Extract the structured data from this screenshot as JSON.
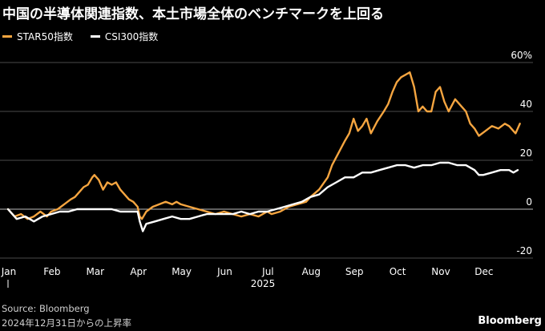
{
  "title": "中国の半導体関連指数、本土市場全体のベンチマークを上回る",
  "legend": [
    {
      "label": "STAR50指数",
      "color": "#f5a540"
    },
    {
      "label": "CSI300指数",
      "color": "#ffffff"
    }
  ],
  "source": "Source: Bloomberg",
  "note": "2024年12月31日からの上昇率",
  "brand": "Bloomberg",
  "chart_data": {
    "type": "line",
    "title": "中国の半導体関連指数、本土市場全体のベンチマークを上回る",
    "xlabel": "",
    "ylabel": "",
    "x_ticks": [
      "Jan",
      "Feb",
      "Mar",
      "Apr",
      "May",
      "Jun",
      "Jul",
      "Aug",
      "Sep",
      "Oct",
      "Nov",
      "Dec"
    ],
    "year_label": "2025",
    "y_ticks": [
      {
        "value": 60,
        "label": "60%"
      },
      {
        "value": 40,
        "label": "40"
      },
      {
        "value": 20,
        "label": "20"
      },
      {
        "value": 0,
        "label": "0"
      },
      {
        "value": -20,
        "label": "-20"
      }
    ],
    "ylim": [
      -20,
      60
    ],
    "grid": true,
    "legend_position": "top-left",
    "series": [
      {
        "name": "STAR50指数",
        "color": "#f5a540",
        "points": [
          [
            0,
            0
          ],
          [
            0.15,
            -3
          ],
          [
            0.3,
            -2
          ],
          [
            0.45,
            -4
          ],
          [
            0.6,
            -3
          ],
          [
            0.75,
            -1
          ],
          [
            0.9,
            -3
          ],
          [
            1.0,
            -1
          ],
          [
            1.15,
            0
          ],
          [
            1.3,
            2
          ],
          [
            1.45,
            4
          ],
          [
            1.55,
            5
          ],
          [
            1.65,
            7
          ],
          [
            1.75,
            9
          ],
          [
            1.85,
            10
          ],
          [
            1.95,
            13
          ],
          [
            2.0,
            14
          ],
          [
            2.1,
            12
          ],
          [
            2.2,
            8
          ],
          [
            2.3,
            11
          ],
          [
            2.4,
            10
          ],
          [
            2.5,
            11
          ],
          [
            2.6,
            8
          ],
          [
            2.7,
            6
          ],
          [
            2.8,
            4
          ],
          [
            2.9,
            3
          ],
          [
            3.0,
            1
          ],
          [
            3.05,
            -3
          ],
          [
            3.1,
            -4
          ],
          [
            3.2,
            -1
          ],
          [
            3.35,
            1
          ],
          [
            3.5,
            2
          ],
          [
            3.65,
            3
          ],
          [
            3.8,
            2
          ],
          [
            3.9,
            3
          ],
          [
            4.0,
            2
          ],
          [
            4.2,
            1
          ],
          [
            4.4,
            0
          ],
          [
            4.6,
            -1
          ],
          [
            4.8,
            -2
          ],
          [
            5.0,
            -1
          ],
          [
            5.2,
            -2
          ],
          [
            5.4,
            -3
          ],
          [
            5.6,
            -2
          ],
          [
            5.8,
            -3
          ],
          [
            6.0,
            -1
          ],
          [
            6.1,
            -2
          ],
          [
            6.3,
            -1
          ],
          [
            6.5,
            1
          ],
          [
            6.7,
            2
          ],
          [
            6.9,
            3
          ],
          [
            7.0,
            5
          ],
          [
            7.2,
            8
          ],
          [
            7.4,
            13
          ],
          [
            7.5,
            18
          ],
          [
            7.65,
            23
          ],
          [
            7.8,
            28
          ],
          [
            7.9,
            31
          ],
          [
            8.0,
            37
          ],
          [
            8.1,
            32
          ],
          [
            8.2,
            34
          ],
          [
            8.3,
            37
          ],
          [
            8.4,
            31
          ],
          [
            8.55,
            36
          ],
          [
            8.7,
            40
          ],
          [
            8.8,
            43
          ],
          [
            8.9,
            48
          ],
          [
            9.0,
            52
          ],
          [
            9.1,
            54
          ],
          [
            9.2,
            55
          ],
          [
            9.3,
            56
          ],
          [
            9.4,
            50
          ],
          [
            9.5,
            40
          ],
          [
            9.6,
            42
          ],
          [
            9.7,
            40
          ],
          [
            9.8,
            40
          ],
          [
            9.9,
            48
          ],
          [
            10.0,
            50
          ],
          [
            10.1,
            44
          ],
          [
            10.2,
            40
          ],
          [
            10.35,
            45
          ],
          [
            10.5,
            42
          ],
          [
            10.6,
            40
          ],
          [
            10.7,
            35
          ],
          [
            10.8,
            33
          ],
          [
            10.9,
            30
          ],
          [
            11.05,
            32
          ],
          [
            11.2,
            34
          ],
          [
            11.35,
            33
          ],
          [
            11.5,
            35
          ],
          [
            11.6,
            34
          ],
          [
            11.7,
            32
          ],
          [
            11.75,
            31
          ],
          [
            11.85,
            35
          ]
        ]
      },
      {
        "name": "CSI300指数",
        "color": "#ffffff",
        "points": [
          [
            0,
            0
          ],
          [
            0.2,
            -4
          ],
          [
            0.4,
            -3
          ],
          [
            0.6,
            -5
          ],
          [
            0.8,
            -3
          ],
          [
            1.0,
            -2
          ],
          [
            1.2,
            -1
          ],
          [
            1.4,
            -1
          ],
          [
            1.6,
            0
          ],
          [
            1.8,
            0
          ],
          [
            2.0,
            0
          ],
          [
            2.2,
            0
          ],
          [
            2.4,
            0
          ],
          [
            2.6,
            -1
          ],
          [
            2.8,
            -1
          ],
          [
            3.0,
            -1
          ],
          [
            3.05,
            -5
          ],
          [
            3.12,
            -9
          ],
          [
            3.2,
            -6
          ],
          [
            3.4,
            -5
          ],
          [
            3.6,
            -4
          ],
          [
            3.8,
            -3
          ],
          [
            4.0,
            -4
          ],
          [
            4.2,
            -4
          ],
          [
            4.4,
            -3
          ],
          [
            4.6,
            -2
          ],
          [
            4.8,
            -2
          ],
          [
            5.0,
            -2
          ],
          [
            5.2,
            -2
          ],
          [
            5.4,
            -1
          ],
          [
            5.6,
            -2
          ],
          [
            5.8,
            -1
          ],
          [
            6.0,
            -1
          ],
          [
            6.2,
            0
          ],
          [
            6.4,
            1
          ],
          [
            6.6,
            2
          ],
          [
            6.8,
            3
          ],
          [
            7.0,
            5
          ],
          [
            7.2,
            6
          ],
          [
            7.4,
            9
          ],
          [
            7.6,
            11
          ],
          [
            7.8,
            13
          ],
          [
            8.0,
            13
          ],
          [
            8.2,
            15
          ],
          [
            8.4,
            15
          ],
          [
            8.6,
            16
          ],
          [
            8.8,
            17
          ],
          [
            9.0,
            18
          ],
          [
            9.2,
            18
          ],
          [
            9.4,
            17
          ],
          [
            9.6,
            18
          ],
          [
            9.8,
            18
          ],
          [
            10.0,
            19
          ],
          [
            10.2,
            19
          ],
          [
            10.4,
            18
          ],
          [
            10.6,
            18
          ],
          [
            10.8,
            16
          ],
          [
            10.9,
            14
          ],
          [
            11.0,
            14
          ],
          [
            11.2,
            15
          ],
          [
            11.4,
            16
          ],
          [
            11.6,
            16
          ],
          [
            11.7,
            15
          ],
          [
            11.8,
            16
          ]
        ]
      }
    ]
  }
}
